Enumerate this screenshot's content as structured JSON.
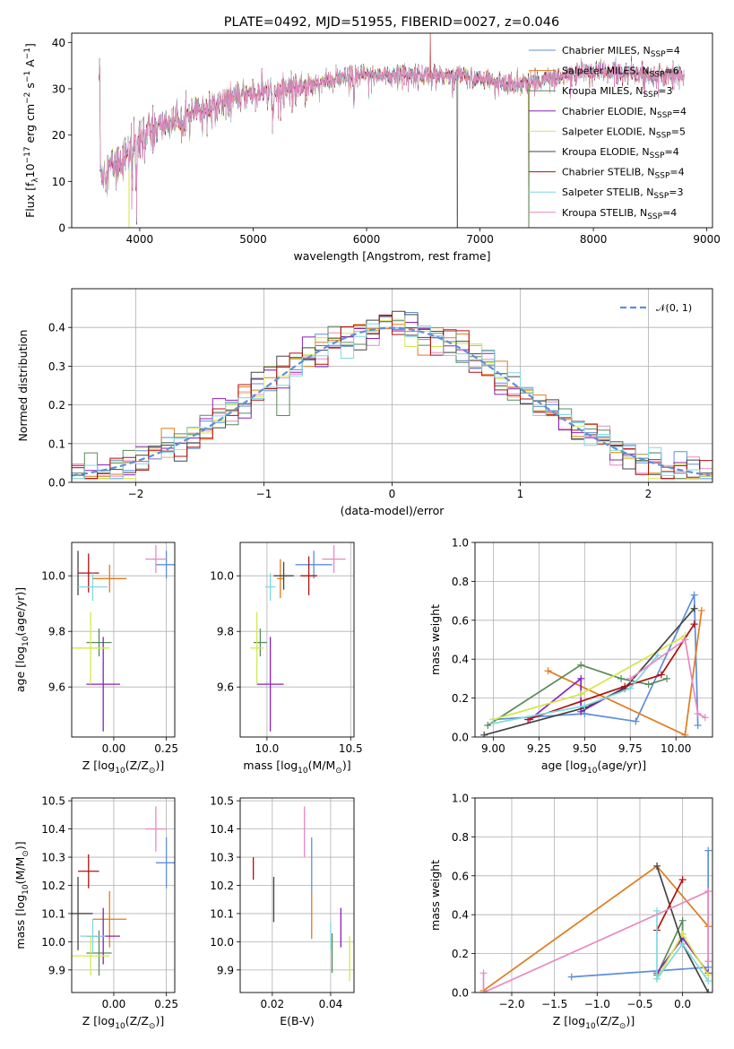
{
  "colors": [
    "#5e8fd9",
    "#e07b1f",
    "#5a8a5c",
    "#8b21b8",
    "#d4e84a",
    "#444444",
    "#b01010",
    "#7fd8e0",
    "#e889c1"
  ],
  "chart_data": [
    {
      "id": "spectrum",
      "type": "line",
      "title": "PLATE=0492, MJD=51955, FIBERID=0027, z=0.046",
      "xlabel": "wavelength [Angstrom, rest frame]",
      "ylabel_parts": [
        "Flux [f",
        "λ",
        "10",
        "−17",
        " erg cm",
        "−2",
        " s",
        "−1",
        " A",
        "−1",
        "]"
      ],
      "xlim": [
        3400,
        9050
      ],
      "ylim": [
        0,
        42
      ],
      "xticks": [
        4000,
        5000,
        6000,
        7000,
        8000,
        9000
      ],
      "yticks": [
        0,
        10,
        20,
        30,
        40
      ],
      "wavelength_range": [
        3640,
        8800
      ],
      "continuum_anchors": [
        [
          3650,
          12
        ],
        [
          3800,
          14
        ],
        [
          3900,
          16
        ],
        [
          4000,
          20
        ],
        [
          4200,
          22
        ],
        [
          4500,
          25
        ],
        [
          4800,
          28
        ],
        [
          5000,
          29
        ],
        [
          5200,
          29.5
        ],
        [
          5500,
          31
        ],
        [
          6000,
          33
        ],
        [
          6300,
          33
        ],
        [
          6500,
          33
        ],
        [
          6800,
          33
        ],
        [
          7000,
          32
        ],
        [
          7300,
          31
        ],
        [
          7600,
          32
        ],
        [
          8000,
          34
        ],
        [
          8500,
          33
        ],
        [
          8800,
          33
        ]
      ],
      "legend": [
        {
          "label": "Chabrier MILES, N",
          "sub": "SSP",
          "suffix": "=4"
        },
        {
          "label": "Salpeter MILES, N",
          "sub": "SSP",
          "suffix": "=6"
        },
        {
          "label": "Kroupa MILES, N",
          "sub": "SSP",
          "suffix": "=3"
        },
        {
          "label": "Chabrier ELODIE, N",
          "sub": "SSP",
          "suffix": "=4"
        },
        {
          "label": "Salpeter ELODIE, N",
          "sub": "SSP",
          "suffix": "=5"
        },
        {
          "label": "Kroupa ELODIE, N",
          "sub": "SSP",
          "suffix": "=4"
        },
        {
          "label": "Chabrier STELIB, N",
          "sub": "SSP",
          "suffix": "=4"
        },
        {
          "label": "Salpeter STELIB, N",
          "sub": "SSP",
          "suffix": "=3"
        },
        {
          "label": "Kroupa STELIB, N",
          "sub": "SSP",
          "suffix": "=4"
        }
      ],
      "legend_placement": "upper-right",
      "grid": false
    },
    {
      "id": "residuals",
      "type": "histogram",
      "xlabel": "(data-model)/error",
      "ylabel": "Normed distribution",
      "xlim": [
        -2.5,
        2.5
      ],
      "ylim": [
        0,
        0.5
      ],
      "xticks": [
        -2,
        -1,
        0,
        1,
        2
      ],
      "yticks": [
        0.0,
        0.1,
        0.2,
        0.3,
        0.4
      ],
      "bin_width": 0.1,
      "legend": [
        {
          "label": "𝒩(0, 1)"
        }
      ],
      "legend_placement": "upper-right",
      "grid": true
    },
    {
      "id": "age-vs-Z",
      "type": "errorbar",
      "xlabel_parts": [
        "Z [log",
        "10",
        "(Z/Z",
        "⊙",
        ")]"
      ],
      "ylabel_parts": [
        "age  [log",
        "10",
        "(age/yr)]"
      ],
      "xlim": [
        -0.2,
        0.29
      ],
      "ylim": [
        9.42,
        10.12
      ],
      "xticks": [
        0.0,
        0.25
      ],
      "yticks": [
        9.6,
        9.8,
        10.0
      ],
      "points": [
        {
          "x": 0.25,
          "y": 10.04,
          "xerr": 0.05,
          "yerr": 0.05
        },
        {
          "x": -0.02,
          "y": 9.99,
          "xerr": 0.08,
          "yerr": 0.05
        },
        {
          "x": -0.07,
          "y": 9.76,
          "xerr": 0.06,
          "yerr": 0.05
        },
        {
          "x": -0.05,
          "y": 9.61,
          "xerr": 0.08,
          "yerr": 0.17
        },
        {
          "x": -0.11,
          "y": 9.74,
          "xerr": 0.09,
          "yerr": 0.13
        },
        {
          "x": -0.17,
          "y": 10.01,
          "xerr": 0.0,
          "yerr": 0.08
        },
        {
          "x": -0.12,
          "y": 10.01,
          "xerr": 0.05,
          "yerr": 0.07
        },
        {
          "x": -0.1,
          "y": 9.96,
          "xerr": 0.07,
          "yerr": 0.05
        },
        {
          "x": 0.2,
          "y": 10.06,
          "xerr": 0.05,
          "yerr": 0.05
        }
      ],
      "grid": true
    },
    {
      "id": "age-vs-mass",
      "type": "errorbar",
      "xlabel_parts": [
        "mass [log",
        "10",
        "(M/M",
        "⊙",
        ")]"
      ],
      "ylabel": "",
      "xlim": [
        9.84,
        10.52
      ],
      "ylim": [
        9.42,
        10.12
      ],
      "xticks": [
        10.0,
        10.5
      ],
      "yticks": [
        9.6,
        9.8,
        10.0
      ],
      "points": [
        {
          "x": 10.28,
          "y": 10.04,
          "xerr": 0.11,
          "yerr": 0.05
        },
        {
          "x": 10.08,
          "y": 9.99,
          "xerr": 0.02,
          "yerr": 0.07
        },
        {
          "x": 9.96,
          "y": 9.76,
          "xerr": 0.04,
          "yerr": 0.05
        },
        {
          "x": 10.02,
          "y": 9.61,
          "xerr": 0.08,
          "yerr": 0.17
        },
        {
          "x": 9.94,
          "y": 9.74,
          "xerr": 0.04,
          "yerr": 0.13
        },
        {
          "x": 10.1,
          "y": 10.0,
          "xerr": 0.06,
          "yerr": 0.05
        },
        {
          "x": 10.25,
          "y": 10.0,
          "xerr": 0.05,
          "yerr": 0.07
        },
        {
          "x": 10.02,
          "y": 9.96,
          "xerr": 0.03,
          "yerr": 0.05
        },
        {
          "x": 10.4,
          "y": 10.06,
          "xerr": 0.07,
          "yerr": 0.05
        }
      ],
      "grid": true
    },
    {
      "id": "massweight-vs-age",
      "type": "line",
      "xlabel_parts": [
        "age  [log",
        "10",
        "(age/yr)]"
      ],
      "ylabel": "mass weight",
      "xlim": [
        8.9,
        10.2
      ],
      "ylim": [
        0,
        1
      ],
      "xticks": [
        9.0,
        9.25,
        9.5,
        9.75,
        10.0
      ],
      "yticks": [
        0.0,
        0.2,
        0.4,
        0.6,
        0.8,
        1.0
      ],
      "series": [
        {
          "color_index": 0,
          "points": [
            [
              9.0,
              0.09
            ],
            [
              9.5,
              0.12
            ],
            [
              9.78,
              0.08
            ],
            [
              10.1,
              0.73
            ],
            [
              10.12,
              0.06
            ]
          ]
        },
        {
          "color_index": 1,
          "points": [
            [
              9.3,
              0.34
            ],
            [
              10.05,
              0.01
            ],
            [
              10.14,
              0.65
            ]
          ]
        },
        {
          "color_index": 2,
          "points": [
            [
              8.97,
              0.06
            ],
            [
              9.48,
              0.37
            ],
            [
              9.7,
              0.3
            ],
            [
              9.85,
              0.27
            ],
            [
              9.95,
              0.3
            ]
          ]
        },
        {
          "color_index": 3,
          "points": [
            [
              9.2,
              0.09
            ],
            [
              9.48,
              0.3
            ],
            [
              9.48,
              0.13
            ],
            [
              9.75,
              0.27
            ]
          ]
        },
        {
          "color_index": 4,
          "points": [
            [
              9.0,
              0.09
            ],
            [
              9.48,
              0.22
            ],
            [
              10.05,
              0.52
            ]
          ]
        },
        {
          "color_index": 5,
          "points": [
            [
              8.95,
              0.01
            ],
            [
              9.5,
              0.15
            ],
            [
              9.72,
              0.25
            ],
            [
              10.1,
              0.66
            ]
          ]
        },
        {
          "color_index": 6,
          "points": [
            [
              9.19,
              0.09
            ],
            [
              9.72,
              0.26
            ],
            [
              9.92,
              0.32
            ],
            [
              10.1,
              0.58
            ]
          ]
        },
        {
          "color_index": 7,
          "points": [
            [
              9.0,
              0.07
            ],
            [
              9.5,
              0.16
            ],
            [
              9.75,
              0.25
            ],
            [
              9.9,
              0.42
            ]
          ]
        },
        {
          "color_index": 8,
          "points": [
            [
              9.75,
              0.3
            ],
            [
              10.05,
              0.5
            ],
            [
              10.12,
              0.12
            ],
            [
              10.16,
              0.1
            ]
          ]
        }
      ],
      "grid": true
    },
    {
      "id": "mass-vs-Z",
      "type": "errorbar",
      "xlabel_parts": [
        "Z [log",
        "10",
        "(Z/Z",
        "⊙",
        ")]"
      ],
      "ylabel_parts": [
        "mass [log",
        "10",
        "(M/M",
        "⊙",
        ")]"
      ],
      "xlim": [
        -0.2,
        0.29
      ],
      "ylim": [
        9.82,
        10.51
      ],
      "xticks": [
        0.0,
        0.25
      ],
      "yticks": [
        9.9,
        10.0,
        10.1,
        10.2,
        10.3,
        10.4,
        10.5
      ],
      "points": [
        {
          "x": 0.25,
          "y": 10.28,
          "xerr": 0.05,
          "yerr": 0.09
        },
        {
          "x": -0.02,
          "y": 10.08,
          "xerr": 0.08,
          "yerr": 0.1
        },
        {
          "x": -0.07,
          "y": 9.96,
          "xerr": 0.06,
          "yerr": 0.08
        },
        {
          "x": -0.05,
          "y": 10.02,
          "xerr": 0.08,
          "yerr": 0.1
        },
        {
          "x": -0.11,
          "y": 9.95,
          "xerr": 0.09,
          "yerr": 0.07
        },
        {
          "x": -0.17,
          "y": 10.1,
          "xerr": 0.07,
          "yerr": 0.13
        },
        {
          "x": -0.12,
          "y": 10.25,
          "xerr": 0.05,
          "yerr": 0.06
        },
        {
          "x": -0.1,
          "y": 10.02,
          "xerr": 0.06,
          "yerr": 0.06
        },
        {
          "x": 0.2,
          "y": 10.4,
          "xerr": 0.05,
          "yerr": 0.08
        }
      ],
      "grid": true
    },
    {
      "id": "mass-vs-ebv",
      "type": "errorbar",
      "xlabel": "E(B-V)",
      "ylabel": "",
      "xlim": [
        0.009,
        0.048
      ],
      "ylim": [
        9.82,
        10.51
      ],
      "xticks": [
        0.02,
        0.04
      ],
      "yticks": [
        9.9,
        10.0,
        10.1,
        10.2,
        10.3,
        10.4,
        10.5
      ],
      "points": [
        {
          "x": 0.0335,
          "y": 10.27,
          "xerr": 0,
          "yerr": 0.1
        },
        {
          "x": 0.0335,
          "y": 10.09,
          "xerr": 0,
          "yerr": 0.08
        },
        {
          "x": 0.0405,
          "y": 9.96,
          "xerr": 0,
          "yerr": 0.07
        },
        {
          "x": 0.0435,
          "y": 10.05,
          "xerr": 0,
          "yerr": 0.07
        },
        {
          "x": 0.0465,
          "y": 9.94,
          "xerr": 0,
          "yerr": 0.08
        },
        {
          "x": 0.0205,
          "y": 10.15,
          "xerr": 0,
          "yerr": 0.08
        },
        {
          "x": 0.0135,
          "y": 10.26,
          "xerr": 0,
          "yerr": 0.04
        },
        {
          "x": 0.04,
          "y": 10.02,
          "xerr": 0,
          "yerr": 0.05
        },
        {
          "x": 0.031,
          "y": 10.39,
          "xerr": 0,
          "yerr": 0.09
        }
      ],
      "grid": true
    },
    {
      "id": "massweight-vs-Z",
      "type": "line",
      "xlabel_parts": [
        "Z [log",
        "10",
        "(Z/Z",
        "⊙",
        ")]"
      ],
      "ylabel": "mass weight",
      "xlim": [
        -2.43,
        0.35
      ],
      "ylim": [
        0,
        1
      ],
      "xticks": [
        -2.0,
        -1.5,
        -1.0,
        -0.5,
        0.0
      ],
      "yticks": [
        0.0,
        0.2,
        0.4,
        0.6,
        0.8,
        1.0
      ],
      "series": [
        {
          "color_index": 0,
          "points": [
            [
              -1.3,
              0.08
            ],
            [
              0.3,
              0.13
            ],
            [
              0.3,
              0.73
            ]
          ]
        },
        {
          "color_index": 1,
          "points": [
            [
              -2.33,
              0.01
            ],
            [
              -0.3,
              0.65
            ],
            [
              0.3,
              0.34
            ]
          ]
        },
        {
          "color_index": 2,
          "points": [
            [
              -0.3,
              0.09
            ],
            [
              0.0,
              0.37
            ],
            [
              0.0,
              0.3
            ]
          ]
        },
        {
          "color_index": 3,
          "points": [
            [
              -0.3,
              0.1
            ],
            [
              0.0,
              0.28
            ],
            [
              0.3,
              0.1
            ]
          ]
        },
        {
          "color_index": 4,
          "points": [
            [
              -0.3,
              0.07
            ],
            [
              0.0,
              0.3
            ],
            [
              0.3,
              0.09
            ]
          ]
        },
        {
          "color_index": 5,
          "points": [
            [
              -0.3,
              0.65
            ],
            [
              0.0,
              0.25
            ],
            [
              0.3,
              0.0
            ]
          ]
        },
        {
          "color_index": 6,
          "points": [
            [
              -0.3,
              0.32
            ],
            [
              0.0,
              0.58
            ]
          ]
        },
        {
          "color_index": 7,
          "points": [
            [
              -0.3,
              0.42
            ],
            [
              -0.3,
              0.07
            ],
            [
              0.0,
              0.25
            ],
            [
              0.3,
              0.06
            ]
          ]
        },
        {
          "color_index": 8,
          "points": [
            [
              -2.33,
              0.1
            ],
            [
              -2.33,
              0.0
            ],
            [
              0.3,
              0.52
            ],
            [
              0.3,
              0.16
            ]
          ]
        }
      ],
      "grid": true
    }
  ]
}
